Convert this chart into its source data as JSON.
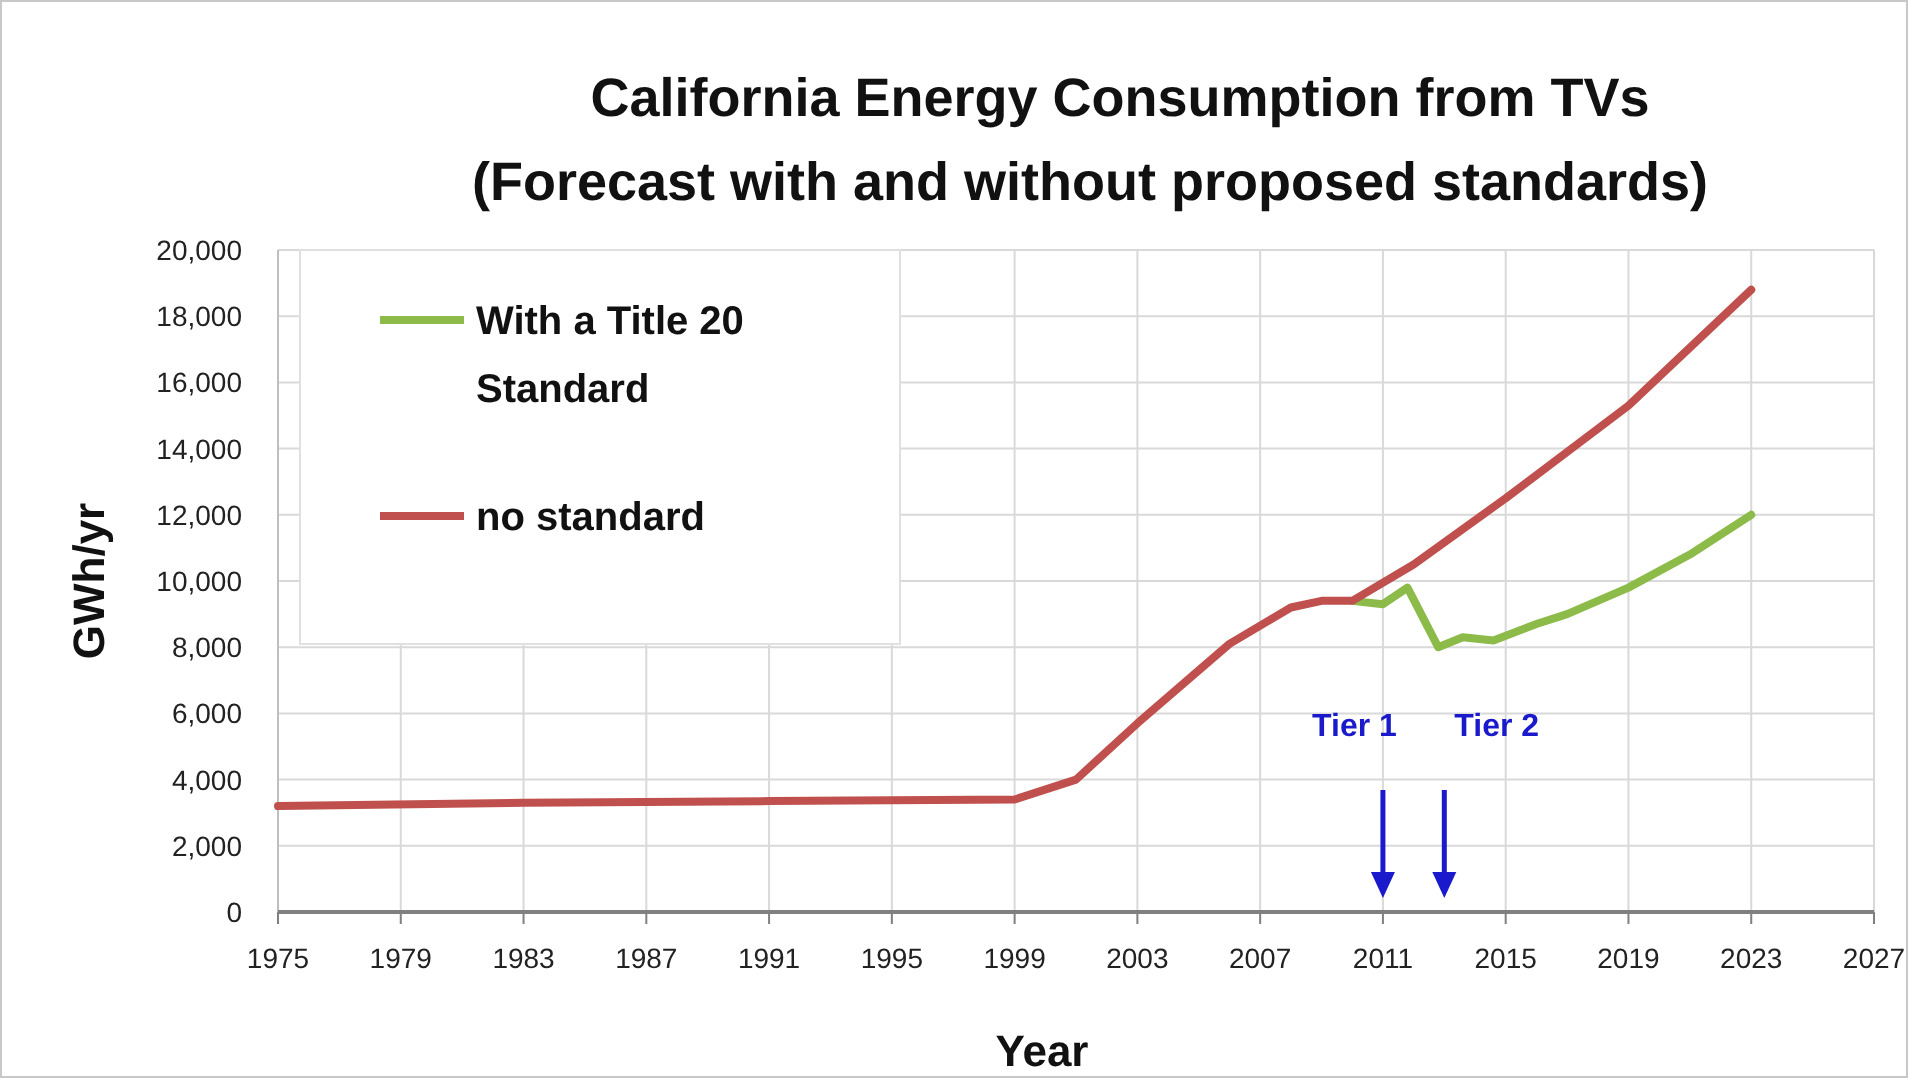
{
  "chart_data": {
    "type": "line",
    "title": "California Energy Consumption from TVs",
    "subtitle": "(Forecast with and without proposed standards)",
    "xlabel": "Year",
    "ylabel": "GWh/yr",
    "xlim": [
      1975,
      2027
    ],
    "xticks": [
      1975,
      1979,
      1983,
      1987,
      1991,
      1995,
      1999,
      2003,
      2007,
      2011,
      2015,
      2019,
      2023,
      2027
    ],
    "ylim": [
      0,
      20000
    ],
    "yticks": [
      0,
      {
        "value": 2000,
        "label": "2,000"
      },
      {
        "value": 4000,
        "label": "4,000"
      },
      {
        "value": 6000,
        "label": "6,000"
      },
      {
        "value": 8000,
        "label": "8,000"
      },
      {
        "value": 10000,
        "label": "10,000"
      },
      {
        "value": 12000,
        "label": "12,000"
      },
      {
        "value": 14000,
        "label": "14,000"
      },
      {
        "value": 16000,
        "label": "16,000"
      },
      {
        "value": 18000,
        "label": "18,000"
      },
      {
        "value": 20000,
        "label": "20,000"
      }
    ],
    "grid": true,
    "legend": "top left",
    "line_style": "solid",
    "marker": "none",
    "series": [
      {
        "name": "With a Title 20 Standard",
        "color": "#8cbb4a",
        "x": [
          2010,
          2011,
          2011.8,
          2012.8,
          2013.6,
          2014.6,
          2016,
          2017,
          2019,
          2021,
          2023
        ],
        "values": [
          9400,
          9300,
          9800,
          8000,
          8300,
          8200,
          8700,
          9000,
          9800,
          10800,
          12000
        ]
      },
      {
        "name": "no standard",
        "color": "#c0504d",
        "x": [
          1975,
          1983,
          1991,
          1999,
          2001,
          2003,
          2006,
          2008,
          2009,
          2010,
          2012,
          2015,
          2019,
          2023
        ],
        "values": [
          3200,
          3300,
          3350,
          3400,
          4000,
          5700,
          8100,
          9200,
          9400,
          9400,
          10500,
          12500,
          15300,
          18800
        ]
      }
    ],
    "ref_lines": [
      {
        "axis": "x",
        "value": 2011,
        "label": "Tier 1",
        "color": "#1a1acc"
      },
      {
        "axis": "x",
        "value": 2013,
        "label": "Tier 2",
        "color": "#1a1acc"
      }
    ]
  }
}
